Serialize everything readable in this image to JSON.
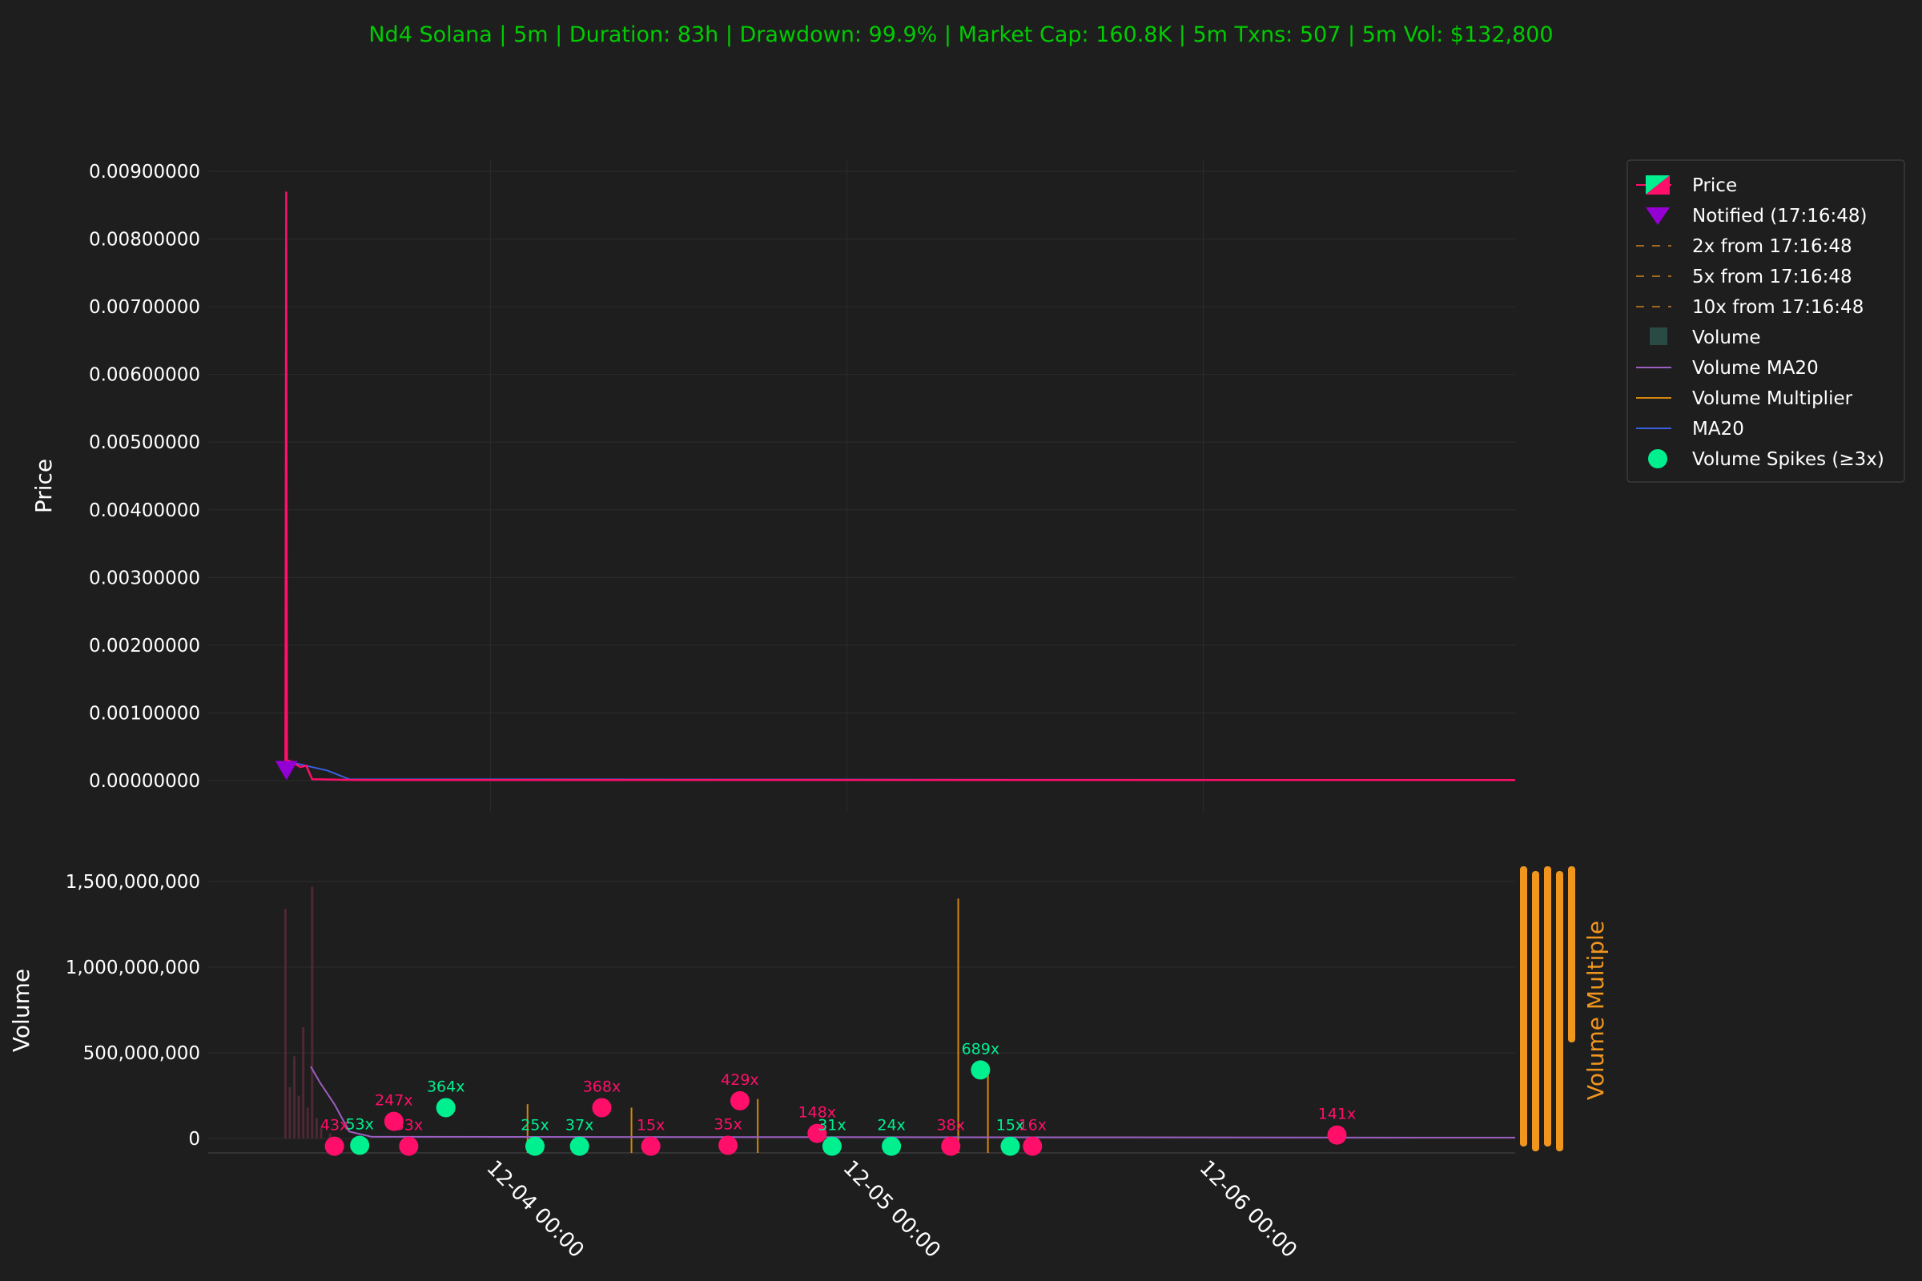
{
  "chart_data": {
    "type": "line",
    "title": "Nd4 Solana | 5m | Duration: 83h | Drawdown: 99.9% | Market Cap: 160.8K | 5m Txns: 507 | 5m Vol: $132,800",
    "price_panel": {
      "ylabel": "Price",
      "ylim": [
        0,
        0.0095
      ],
      "yticks": [
        "0.00000000",
        "0.00100000",
        "0.00200000",
        "0.00300000",
        "0.00400000",
        "0.00500000",
        "0.00600000",
        "0.00700000",
        "0.00800000",
        "0.00900000"
      ],
      "ytick_values": [
        0,
        0.001,
        0.002,
        0.003,
        0.004,
        0.005,
        0.006,
        0.007,
        0.008,
        0.009
      ],
      "price_series": [
        {
          "t": 17.2,
          "v": 0.00015
        },
        {
          "t": 17.25,
          "v": 0.0087
        },
        {
          "t": 17.3,
          "v": 0.0003
        },
        {
          "t": 17.6,
          "v": 0.00028
        },
        {
          "t": 18.2,
          "v": 0.0002
        },
        {
          "t": 18.6,
          "v": 0.00022
        },
        {
          "t": 19.0,
          "v": 2e-05
        },
        {
          "t": 22.0,
          "v": 1e-05
        },
        {
          "t": 100.0,
          "v": 1e-05
        }
      ],
      "ma20_series": [
        {
          "t": 17.2,
          "v": 0.0002
        },
        {
          "t": 18.0,
          "v": 0.00025
        },
        {
          "t": 20.0,
          "v": 0.00015
        },
        {
          "t": 21.5,
          "v": 2e-05
        },
        {
          "t": 100.0,
          "v": 1e-05
        }
      ],
      "notified": {
        "t": 17.27,
        "v": 0.00015,
        "label": "Notified (17:16:48)"
      }
    },
    "volume_panel": {
      "ylabel": "Volume",
      "y2label": "Volume Multiple",
      "ylim": [
        -20000000,
        1600000000
      ],
      "yticks": [
        "0",
        "500,000,000",
        "1,000,000,000",
        "1,500,000,000"
      ],
      "ytick_values": [
        0,
        500000000,
        1000000000,
        1500000000
      ],
      "volume_bars": [
        {
          "t": 17.2,
          "v": 1340000000
        },
        {
          "t": 17.5,
          "v": 300000000
        },
        {
          "t": 17.8,
          "v": 480000000
        },
        {
          "t": 18.1,
          "v": 250000000
        },
        {
          "t": 18.4,
          "v": 650000000
        },
        {
          "t": 18.7,
          "v": 180000000
        },
        {
          "t": 19.0,
          "v": 1470000000
        },
        {
          "t": 19.3,
          "v": 120000000
        },
        {
          "t": 19.6,
          "v": 60000000
        },
        {
          "t": 20.2,
          "v": 30000000
        }
      ],
      "volume_ma20": [
        {
          "t": 18.9,
          "v": 420000000
        },
        {
          "t": 19.5,
          "v": 330000000
        },
        {
          "t": 20.5,
          "v": 200000000
        },
        {
          "t": 21.5,
          "v": 40000000
        },
        {
          "t": 23.0,
          "v": 10000000
        },
        {
          "t": 100.0,
          "v": 5000000
        }
      ],
      "multiplier_spikes": [
        {
          "t": 33.5,
          "v": 200000000
        },
        {
          "t": 40.5,
          "v": 180000000
        },
        {
          "t": 49.0,
          "v": 230000000
        },
        {
          "t": 62.5,
          "v": 1400000000
        },
        {
          "t": 64.5,
          "v": 400000000
        }
      ],
      "spikes": [
        {
          "t": 24.5,
          "v": 100000000,
          "label": "247x",
          "color": "#ff0f6a"
        },
        {
          "t": 28.0,
          "v": 180000000,
          "label": "364x",
          "color": "#00f090"
        },
        {
          "t": 38.5,
          "v": 180000000,
          "label": "368x",
          "color": "#ff0f6a"
        },
        {
          "t": 47.8,
          "v": 220000000,
          "label": "429x",
          "color": "#ff0f6a"
        },
        {
          "t": 53.0,
          "v": 30000000,
          "label": "148x",
          "color": "#ff0f6a"
        },
        {
          "t": 64.0,
          "v": 400000000,
          "label": "689x",
          "color": "#00f090"
        },
        {
          "t": 88.0,
          "v": 20000000,
          "label": "141x",
          "color": "#ff0f6a"
        },
        {
          "t": 22.2,
          "v": -40000000,
          "label": "53x",
          "color": "#00f090"
        },
        {
          "t": 20.5,
          "v": -45000000,
          "label": "43x",
          "color": "#ff0f6a"
        },
        {
          "t": 25.5,
          "v": -45000000,
          "label": "33x",
          "color": "#ff0f6a"
        },
        {
          "t": 34.0,
          "v": -45000000,
          "label": "25x",
          "color": "#00f090"
        },
        {
          "t": 37.0,
          "v": -45000000,
          "label": "37x",
          "color": "#00f090"
        },
        {
          "t": 41.8,
          "v": -45000000,
          "label": "15x",
          "color": "#ff0f6a"
        },
        {
          "t": 47.0,
          "v": -40000000,
          "label": "35x",
          "color": "#ff0f6a"
        },
        {
          "t": 54.0,
          "v": -45000000,
          "label": "31x",
          "color": "#00f090"
        },
        {
          "t": 58.0,
          "v": -45000000,
          "label": "24x",
          "color": "#00f090"
        },
        {
          "t": 62.0,
          "v": -45000000,
          "label": "38x",
          "color": "#ff0f6a"
        },
        {
          "t": 66.0,
          "v": -45000000,
          "label": "15x",
          "color": "#00f090"
        },
        {
          "t": 67.5,
          "v": -45000000,
          "label": "16x",
          "color": "#ff0f6a"
        }
      ]
    },
    "x_axis": {
      "labels": [
        "12-04 00:00",
        "12-05 00:00",
        "12-06 00:00"
      ],
      "label_t": [
        31.0,
        55.0,
        79.0
      ],
      "xlim": [
        12,
        100
      ]
    },
    "legend": {
      "placement": "top-right",
      "entries": [
        {
          "label": "Price",
          "kind": "candle"
        },
        {
          "label": "Notified (17:16:48)",
          "kind": "triangle",
          "color": "#9400d3"
        },
        {
          "label": "2x from 17:16:48",
          "kind": "dash",
          "color": "#a06a1e"
        },
        {
          "label": "5x from 17:16:48",
          "kind": "dash",
          "color": "#a06a1e"
        },
        {
          "label": "10x from 17:16:48",
          "kind": "dash",
          "color": "#a06a1e"
        },
        {
          "label": "Volume",
          "kind": "square",
          "color": "#2a4a44"
        },
        {
          "label": "Volume MA20",
          "kind": "line",
          "color": "#9a5fc0"
        },
        {
          "label": "Volume Multiplier",
          "kind": "line",
          "color": "#d4870d"
        },
        {
          "label": "MA20",
          "kind": "line",
          "color": "#3a60e0"
        },
        {
          "label": "Volume Spikes (≥3x)",
          "kind": "dot",
          "color": "#00f090"
        }
      ]
    },
    "colors": {
      "background": "#1e1e1e",
      "title": "#00cc00",
      "price_up": "#00f090",
      "price_down": "#ff0f6a",
      "ma20": "#3a60e0",
      "volume_ma20": "#9a5fc0",
      "multiplier": "#d4870d",
      "multiple_axis": "#f0961e"
    }
  }
}
